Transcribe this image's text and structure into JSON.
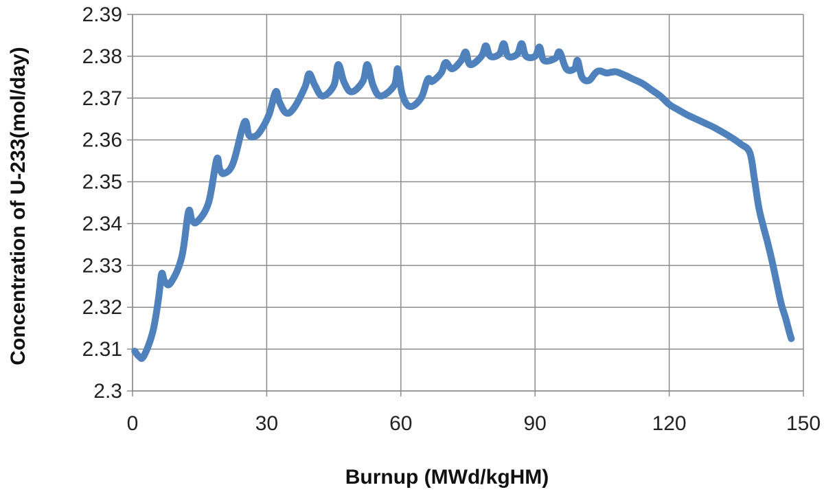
{
  "chart_data": {
    "type": "line",
    "xlabel": "Burnup (MWd/kgHM)",
    "ylabel": "Concentration of U-233(mol/day)",
    "xlim": [
      0,
      150
    ],
    "ylim": [
      2.3,
      2.39
    ],
    "xticks": [
      0,
      30,
      60,
      90,
      120,
      150
    ],
    "xtick_labels": [
      "0",
      "30",
      "60",
      "90",
      "120",
      "150"
    ],
    "yticks": [
      2.3,
      2.31,
      2.32,
      2.33,
      2.34,
      2.35,
      2.36,
      2.37,
      2.38,
      2.39
    ],
    "ytick_labels": [
      "2.3",
      "2.31",
      "2.32",
      "2.33",
      "2.34",
      "2.35",
      "2.36",
      "2.37",
      "2.38",
      "2.39"
    ],
    "grid": true,
    "legend": "none",
    "series": [
      {
        "color": "#4f81bd",
        "x": [
          0.5,
          1.5,
          2.5,
          4.5,
          5.8,
          6.5,
          7.2,
          8.5,
          11.0,
          12.5,
          13.3,
          14.5,
          17.0,
          18.8,
          19.5,
          20.5,
          22.5,
          25.0,
          26.0,
          27.2,
          28.5,
          30.5,
          32.0,
          32.8,
          34.3,
          36.0,
          38.5,
          39.5,
          40.8,
          42.5,
          45.0,
          46.0,
          47.3,
          49.0,
          51.5,
          52.5,
          53.8,
          55.5,
          58.5,
          59.3,
          60.3,
          62.0,
          64.5,
          66.0,
          67.0,
          69.0,
          70.0,
          71.5,
          73.5,
          74.5,
          75.5,
          78.0,
          79.0,
          80.0,
          82.0,
          83.0,
          84.0,
          86.0,
          87.0,
          88.0,
          90.0,
          91.0,
          92.0,
          94.5,
          95.5,
          97.0,
          98.8,
          99.5,
          100.5,
          102.0,
          103.5,
          104.5,
          106.0,
          108.0,
          110.0,
          112.0,
          114.0,
          116.0,
          118.0,
          120.0,
          122.0,
          124.0,
          126.0,
          128.0,
          130.0,
          132.0,
          134.0,
          136.0,
          138.0,
          139.0,
          140.0,
          141.0,
          142.0,
          143.0,
          144.0,
          145.0,
          146.0,
          146.5,
          147.0,
          147.3
        ],
        "y": [
          2.3095,
          2.3082,
          2.3083,
          2.314,
          2.322,
          2.328,
          2.3262,
          2.3258,
          2.332,
          2.3428,
          2.3408,
          2.3405,
          2.345,
          2.3553,
          2.353,
          2.352,
          2.3545,
          2.3642,
          2.3612,
          2.3608,
          2.362,
          2.366,
          2.3715,
          2.3692,
          2.3665,
          2.3675,
          2.3725,
          2.3758,
          2.373,
          2.3705,
          2.373,
          2.378,
          2.3738,
          2.3715,
          2.374,
          2.378,
          2.373,
          2.3705,
          2.373,
          2.377,
          2.371,
          2.368,
          2.37,
          2.3745,
          2.374,
          2.376,
          2.3785,
          2.377,
          2.379,
          2.381,
          2.378,
          2.38,
          2.3825,
          2.38,
          2.3805,
          2.383,
          2.38,
          2.3805,
          2.383,
          2.38,
          2.38,
          2.3822,
          2.379,
          2.3795,
          2.381,
          2.377,
          2.377,
          2.379,
          2.375,
          2.3742,
          2.376,
          2.3765,
          2.376,
          2.3763,
          2.3755,
          2.3745,
          2.3735,
          2.372,
          2.3705,
          2.3685,
          2.3672,
          2.366,
          2.365,
          2.364,
          2.363,
          2.3618,
          2.3605,
          2.359,
          2.357,
          2.351,
          2.344,
          2.3395,
          2.3355,
          2.331,
          2.326,
          2.321,
          2.3175,
          2.3155,
          2.3135,
          2.3125
        ]
      }
    ]
  }
}
